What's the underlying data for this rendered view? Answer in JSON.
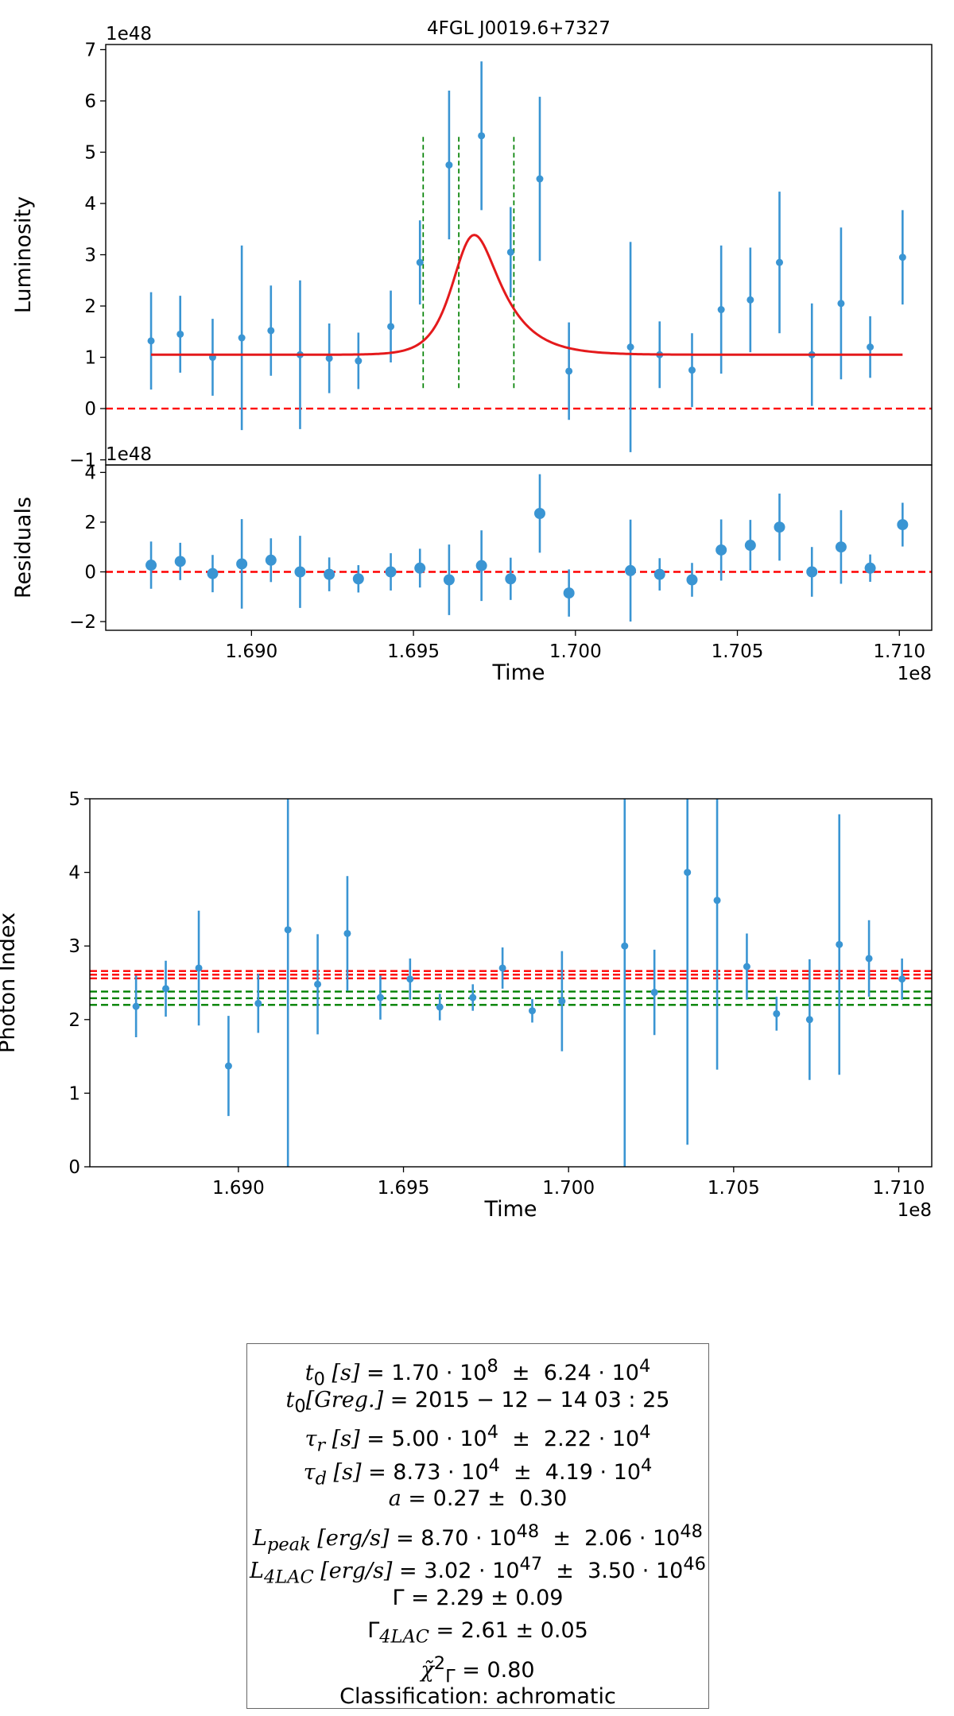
{
  "chart_data": [
    {
      "type": "scatter",
      "panel": "lightcurve",
      "title": "4FGL J0019.6+7327",
      "xlabel": "Time",
      "ylabel": "Luminosity",
      "xlim": [
        1.6855,
        1.711
      ],
      "ylim": [
        -1.1,
        7.1
      ],
      "y_offset_label": "1e48",
      "yticks": [
        -1,
        0,
        1,
        2,
        3,
        4,
        5,
        6,
        7
      ],
      "ytick_labels": [
        "−1",
        "0",
        "1",
        "2",
        "3",
        "4",
        "5",
        "6",
        "7"
      ],
      "series": [
        {
          "name": "Luminosity data",
          "color": "#3a95d3",
          "x": [
            1.6869,
            1.6878,
            1.6888,
            1.6897,
            1.6906,
            1.6915,
            1.6924,
            1.6933,
            1.6943,
            1.6952,
            1.6961,
            1.6971,
            1.698,
            1.6989,
            1.6998,
            1.7017,
            1.7026,
            1.7036,
            1.7045,
            1.7054,
            1.7063,
            1.7073,
            1.7082,
            1.7091,
            1.7101
          ],
          "y": [
            1.32,
            1.45,
            1.0,
            1.38,
            1.52,
            1.05,
            0.98,
            0.93,
            1.6,
            2.85,
            4.75,
            5.32,
            3.05,
            4.48,
            0.73,
            1.2,
            1.05,
            0.75,
            1.93,
            2.12,
            2.85,
            1.05,
            2.05,
            1.2,
            2.95
          ],
          "yerr": [
            0.95,
            0.75,
            0.75,
            1.8,
            0.88,
            1.45,
            0.68,
            0.55,
            0.7,
            0.82,
            1.45,
            1.45,
            0.88,
            1.6,
            0.95,
            2.05,
            0.65,
            0.72,
            1.25,
            1.02,
            1.38,
            1.0,
            1.48,
            0.6,
            0.92
          ]
        },
        {
          "name": "Flare model",
          "color": "#e41a1c",
          "baseline": 1.05,
          "t0": 1.6967,
          "tau_r": 0.0005,
          "tau_d": 0.000873,
          "amplitude": 4.5,
          "x_range": [
            1.6869,
            1.7101
          ]
        }
      ],
      "hlines": [
        {
          "y": 0,
          "color": "#ff0000",
          "style": "dashed"
        }
      ],
      "vlines": [
        {
          "x": 1.6953,
          "ymin": 0.4,
          "ymax": 5.3,
          "color": "#008000",
          "style": "dashed"
        },
        {
          "x": 1.6964,
          "ymin": 0.4,
          "ymax": 5.3,
          "color": "#008000",
          "style": "dashed"
        },
        {
          "x": 1.6981,
          "ymin": 0.4,
          "ymax": 5.3,
          "color": "#008000",
          "style": "dashed"
        }
      ]
    },
    {
      "type": "scatter",
      "panel": "residuals",
      "xlabel": "Time",
      "ylabel": "Residuals",
      "xlim": [
        1.6855,
        1.711
      ],
      "ylim": [
        -2.35,
        4.3
      ],
      "y_offset_label": "1e48",
      "x_offset_label": "1e8",
      "xticks": [
        1.69,
        1.695,
        1.7,
        1.705,
        1.71
      ],
      "xtick_labels": [
        "1.690",
        "1.695",
        "1.700",
        "1.705",
        "1.710"
      ],
      "yticks": [
        -2,
        0,
        2,
        4
      ],
      "ytick_labels": [
        "−2",
        "0",
        "2",
        "4"
      ],
      "series": [
        {
          "name": "Residuals",
          "color": "#3a95d3",
          "x": [
            1.6869,
            1.6878,
            1.6888,
            1.6897,
            1.6906,
            1.6915,
            1.6924,
            1.6933,
            1.6943,
            1.6952,
            1.6961,
            1.6971,
            1.698,
            1.6989,
            1.6998,
            1.7017,
            1.7026,
            1.7036,
            1.7045,
            1.7054,
            1.7063,
            1.7073,
            1.7082,
            1.7091,
            1.7101
          ],
          "y": [
            0.27,
            0.42,
            -0.07,
            0.32,
            0.47,
            0.0,
            -0.1,
            -0.28,
            0.0,
            0.15,
            -0.32,
            0.25,
            -0.28,
            2.35,
            -0.85,
            0.05,
            -0.1,
            -0.32,
            0.88,
            1.07,
            1.8,
            0.0,
            1.0,
            0.15,
            1.9
          ],
          "yerr": [
            0.95,
            0.75,
            0.75,
            1.8,
            0.88,
            1.45,
            0.68,
            0.55,
            0.75,
            0.78,
            1.42,
            1.42,
            0.85,
            1.58,
            0.95,
            2.05,
            0.65,
            0.68,
            1.23,
            1.02,
            1.35,
            1.0,
            1.48,
            0.55,
            0.88
          ]
        }
      ],
      "hlines": [
        {
          "y": 0,
          "color": "#ff0000",
          "style": "dashed"
        }
      ]
    },
    {
      "type": "scatter",
      "panel": "photon_index",
      "xlabel": "Time",
      "ylabel": "Photon Index",
      "xlim": [
        1.6855,
        1.711
      ],
      "ylim": [
        0,
        5
      ],
      "x_offset_label": "1e8",
      "xticks": [
        1.69,
        1.695,
        1.7,
        1.705,
        1.71
      ],
      "xtick_labels": [
        "1.690",
        "1.695",
        "1.700",
        "1.705",
        "1.710"
      ],
      "yticks": [
        0,
        1,
        2,
        3,
        4,
        5
      ],
      "ytick_labels": [
        "0",
        "1",
        "2",
        "3",
        "4",
        "5"
      ],
      "series": [
        {
          "name": "Photon index",
          "color": "#3a95d3",
          "x": [
            1.6869,
            1.6878,
            1.6888,
            1.6897,
            1.6906,
            1.6915,
            1.6924,
            1.6933,
            1.6943,
            1.6952,
            1.6961,
            1.6971,
            1.698,
            1.6989,
            1.6998,
            1.7017,
            1.7026,
            1.7036,
            1.7045,
            1.7054,
            1.7063,
            1.7073,
            1.7082,
            1.7091,
            1.7101
          ],
          "y": [
            2.18,
            2.42,
            2.7,
            1.37,
            2.22,
            3.22,
            2.48,
            3.17,
            2.3,
            2.55,
            2.17,
            2.3,
            2.7,
            2.12,
            2.25,
            3.0,
            2.37,
            4.0,
            3.62,
            2.72,
            2.08,
            2.0,
            3.02,
            2.83,
            2.55
          ],
          "yerr": [
            0.42,
            0.38,
            0.78,
            0.68,
            0.4,
            3.25,
            0.68,
            0.78,
            0.3,
            0.28,
            0.18,
            0.18,
            0.28,
            0.16,
            0.68,
            3.1,
            0.58,
            3.7,
            2.3,
            0.45,
            0.23,
            0.82,
            1.77,
            0.52,
            0.28
          ]
        }
      ],
      "hlines": [
        {
          "y": 2.66,
          "color": "#ff0000",
          "style": "dashed"
        },
        {
          "y": 2.61,
          "color": "#ff0000",
          "style": "dashed"
        },
        {
          "y": 2.56,
          "color": "#ff0000",
          "style": "dashed"
        },
        {
          "y": 2.38,
          "color": "#008000",
          "style": "dashed"
        },
        {
          "y": 2.29,
          "color": "#008000",
          "style": "dashed"
        },
        {
          "y": 2.2,
          "color": "#008000",
          "style": "dashed"
        }
      ]
    }
  ],
  "params": {
    "t0_s": {
      "label": "t",
      "sub": "0",
      "unit": " [s]",
      "value": "1.70",
      "exp": "8",
      "err": "6.24",
      "err_exp": "4"
    },
    "t0_greg": {
      "label": "t",
      "sub": "0",
      "unit": "[Greg.]",
      "text": "2015 − 12 − 14 03 : 25"
    },
    "tau_r": {
      "label": "τ",
      "sub": "r",
      "unit": " [s]",
      "value": "5.00",
      "exp": "4",
      "err": "2.22",
      "err_exp": "4"
    },
    "tau_d": {
      "label": "τ",
      "sub": "d",
      "unit": " [s]",
      "value": "8.73",
      "exp": "4",
      "err": "4.19",
      "err_exp": "4"
    },
    "a": {
      "label": "a",
      "value": "0.27",
      "err": "0.30"
    },
    "l_peak": {
      "label": "L",
      "sub": "peak",
      "unit": " [erg/s]",
      "value": "8.70",
      "exp": "48",
      "err": "2.06",
      "err_exp": "48"
    },
    "l_4lac": {
      "label": "L",
      "sub": "4LAC",
      "unit": " [erg/s]",
      "value": "3.02",
      "exp": "47",
      "err": "3.50",
      "err_exp": "46"
    },
    "gamma": {
      "label": "Γ",
      "value": "2.29",
      "err": "0.09"
    },
    "gamma_4lac": {
      "label": "Γ",
      "sub": "4LAC",
      "value": "2.61",
      "err": "0.05"
    },
    "chi2": {
      "label": "χ̃",
      "sup": "2",
      "sub": "Γ",
      "value": "0.80"
    },
    "classification": {
      "label": "Classification:",
      "value": "achromatic"
    }
  }
}
